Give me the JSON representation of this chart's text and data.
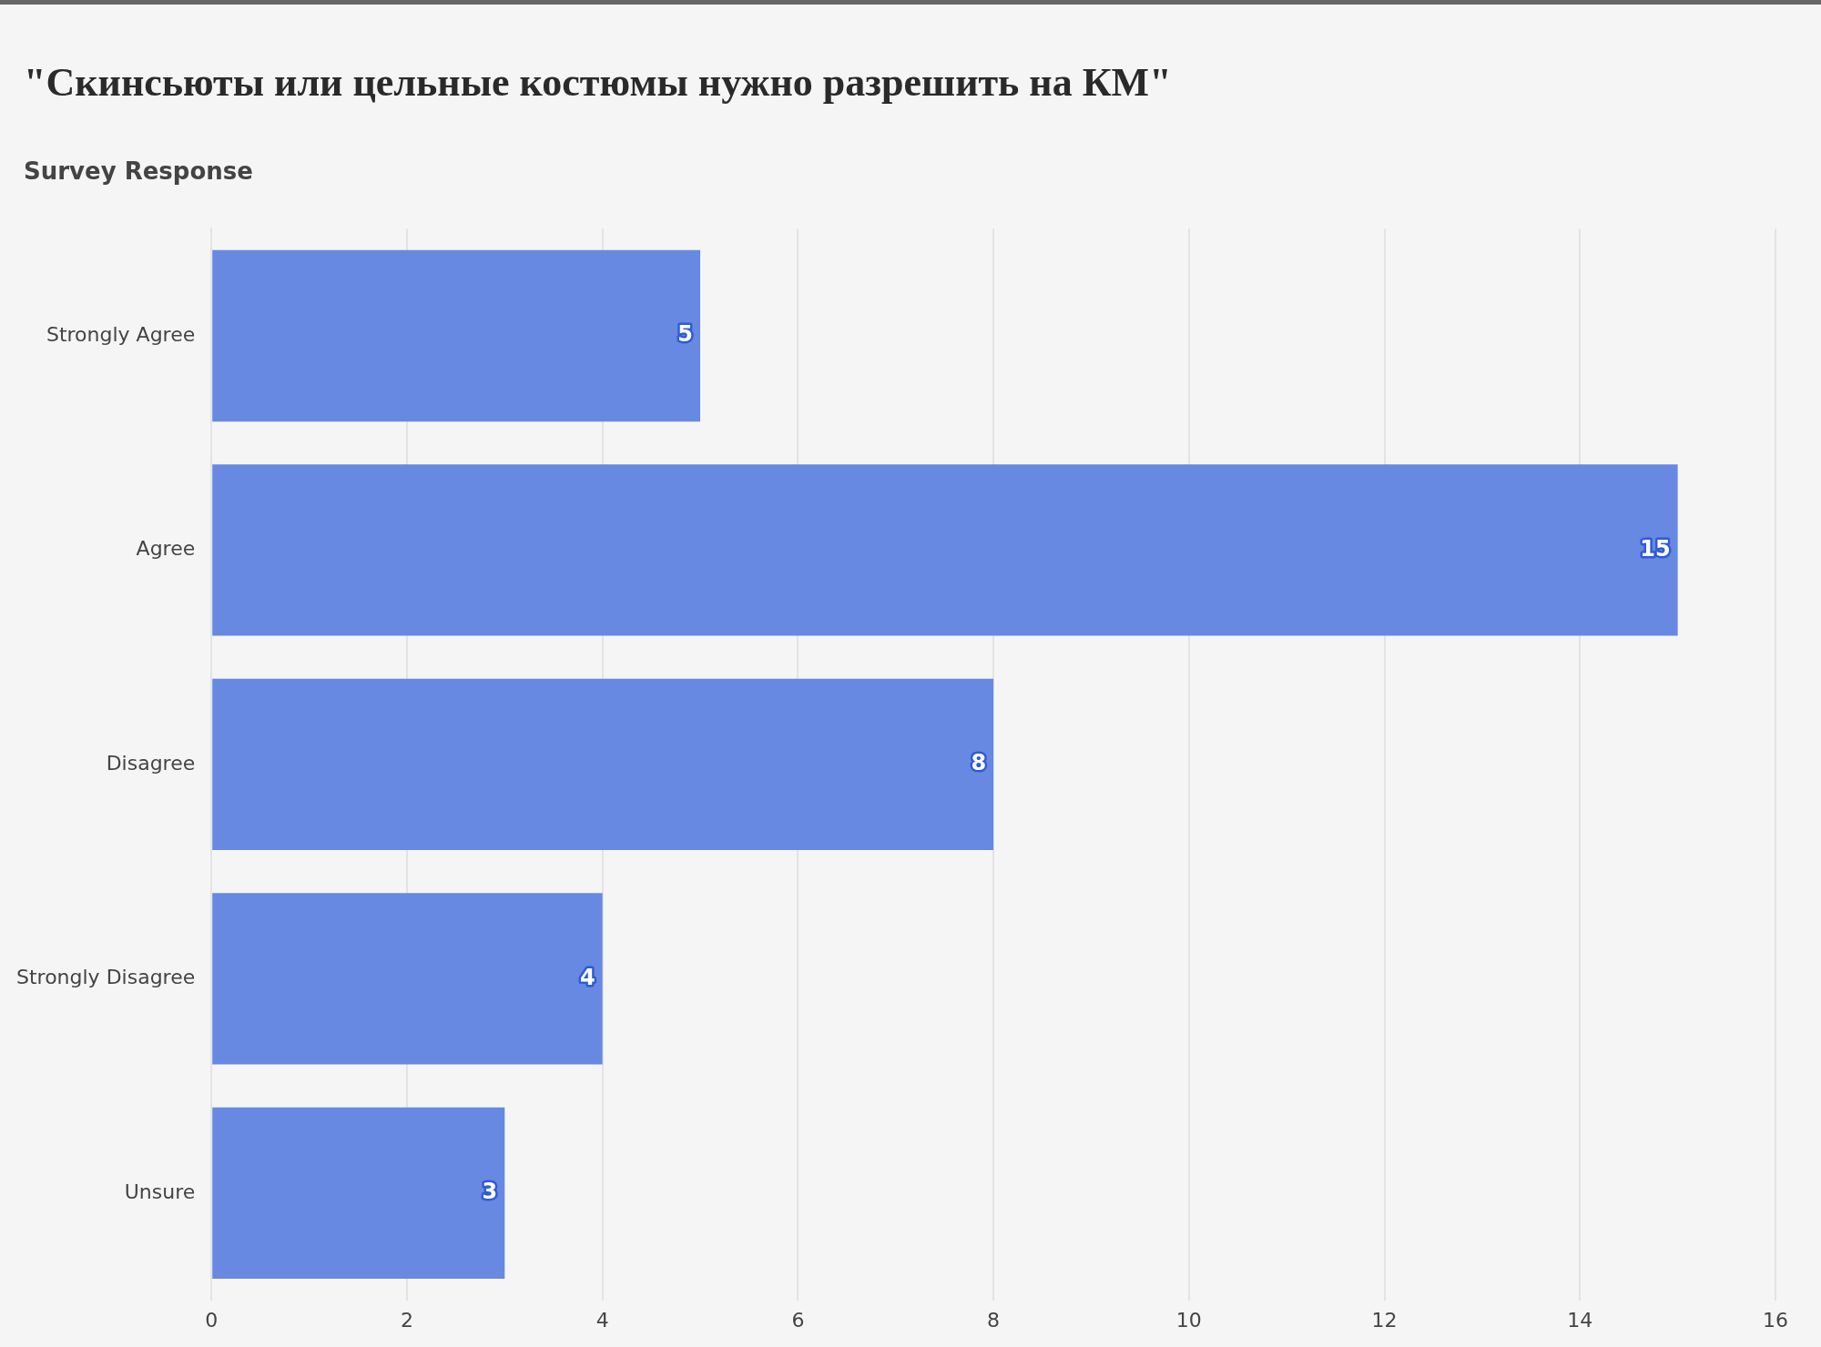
{
  "chart_data": {
    "type": "bar",
    "orientation": "horizontal",
    "title": "\"Скинсьюты или цельные костюмы нужно разрешить на КМ\"",
    "ylabel": "Survey Response",
    "categories": [
      "Strongly Agree",
      "Agree",
      "Disagree",
      "Strongly Disagree",
      "Unsure"
    ],
    "values": [
      5,
      15,
      8,
      4,
      3
    ],
    "color": "#6889e1",
    "xlim": [
      0,
      16
    ],
    "xticks": [
      0,
      2,
      4,
      6,
      8,
      10,
      12,
      14,
      16
    ],
    "grid": "x",
    "legend": false,
    "data_labels": true
  }
}
